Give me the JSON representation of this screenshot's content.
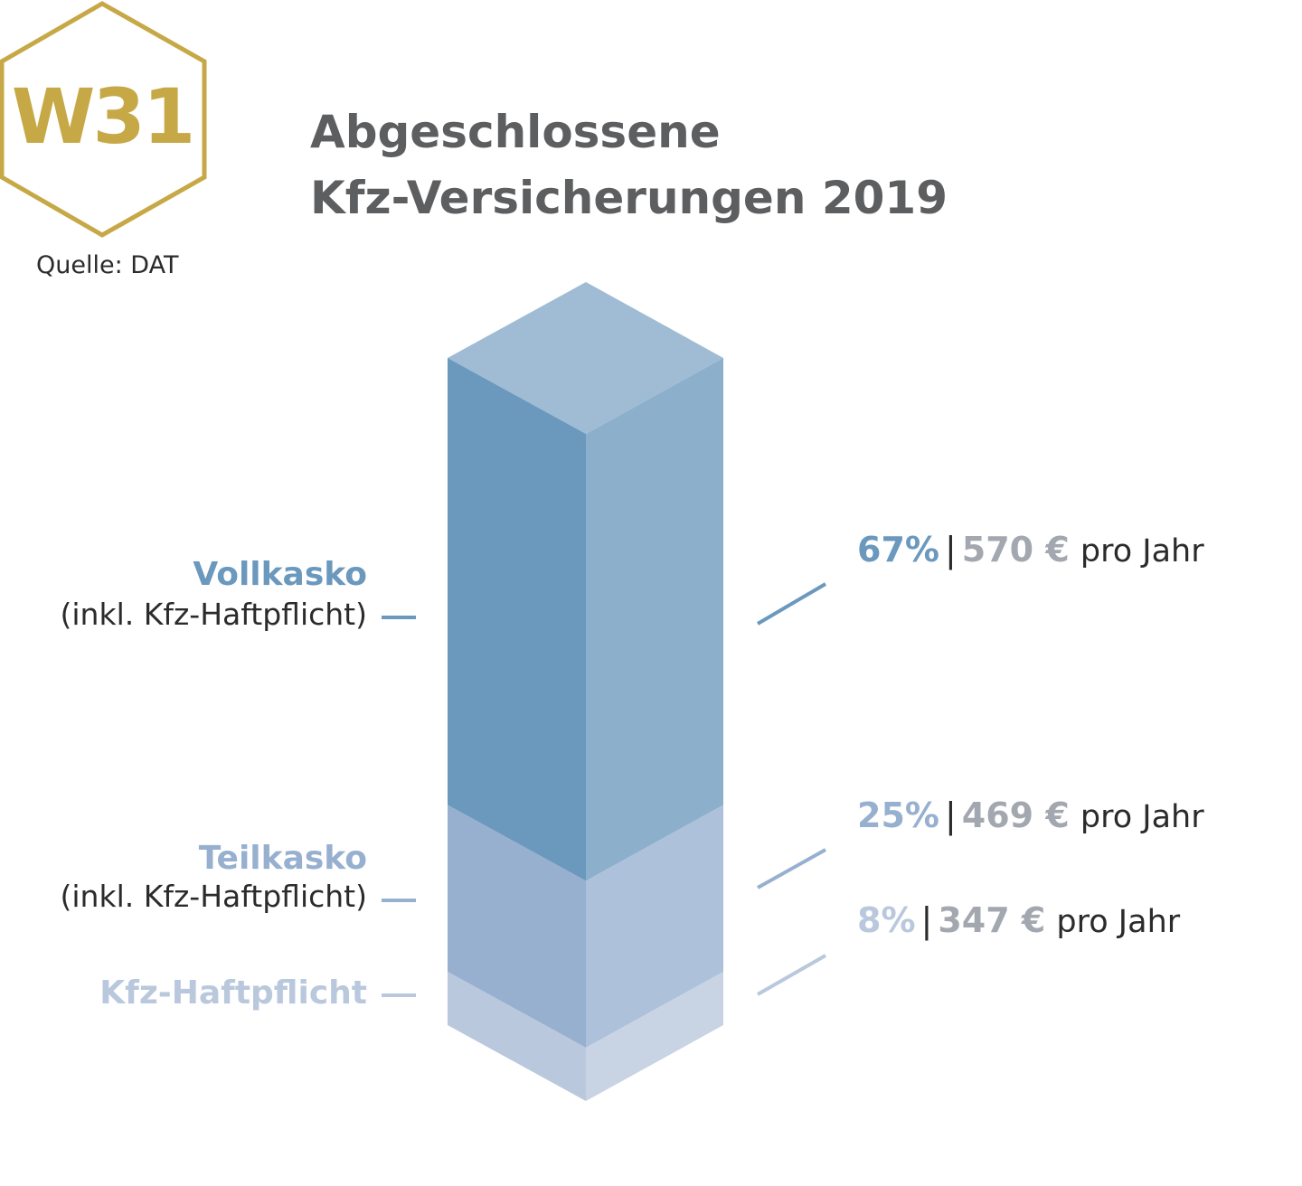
{
  "badge": {
    "label": "W31",
    "color": "#c7a846"
  },
  "source": "Quelle: DAT",
  "title": {
    "line1": "Abgeschlossene",
    "line2": "Kfz-Versicherungen 2019"
  },
  "chart_data": {
    "type": "bar",
    "style": "stacked single 3D column",
    "title": "Abgeschlossene Kfz-Versicherungen 2019",
    "unit": "%",
    "segments": [
      {
        "name": "Vollkasko",
        "sub": "(inkl. Kfz-Haftpflicht)",
        "share": 67,
        "share_label": "67%",
        "price_label": "570 €",
        "price": 570,
        "per": "pro Jahr",
        "color": "#6b98bd"
      },
      {
        "name": "Teilkasko",
        "sub": "(inkl. Kfz-Haftpflicht)",
        "share": 25,
        "share_label": "25%",
        "price_label": "469 €",
        "price": 469,
        "per": "pro Jahr",
        "color": "#97b0cf"
      },
      {
        "name": "Kfz-Haftpflicht",
        "sub": "",
        "share": 8,
        "share_label": "8%",
        "price_label": "347 €",
        "price": 347,
        "per": "pro Jahr",
        "color": "#b9c8dc"
      }
    ]
  }
}
